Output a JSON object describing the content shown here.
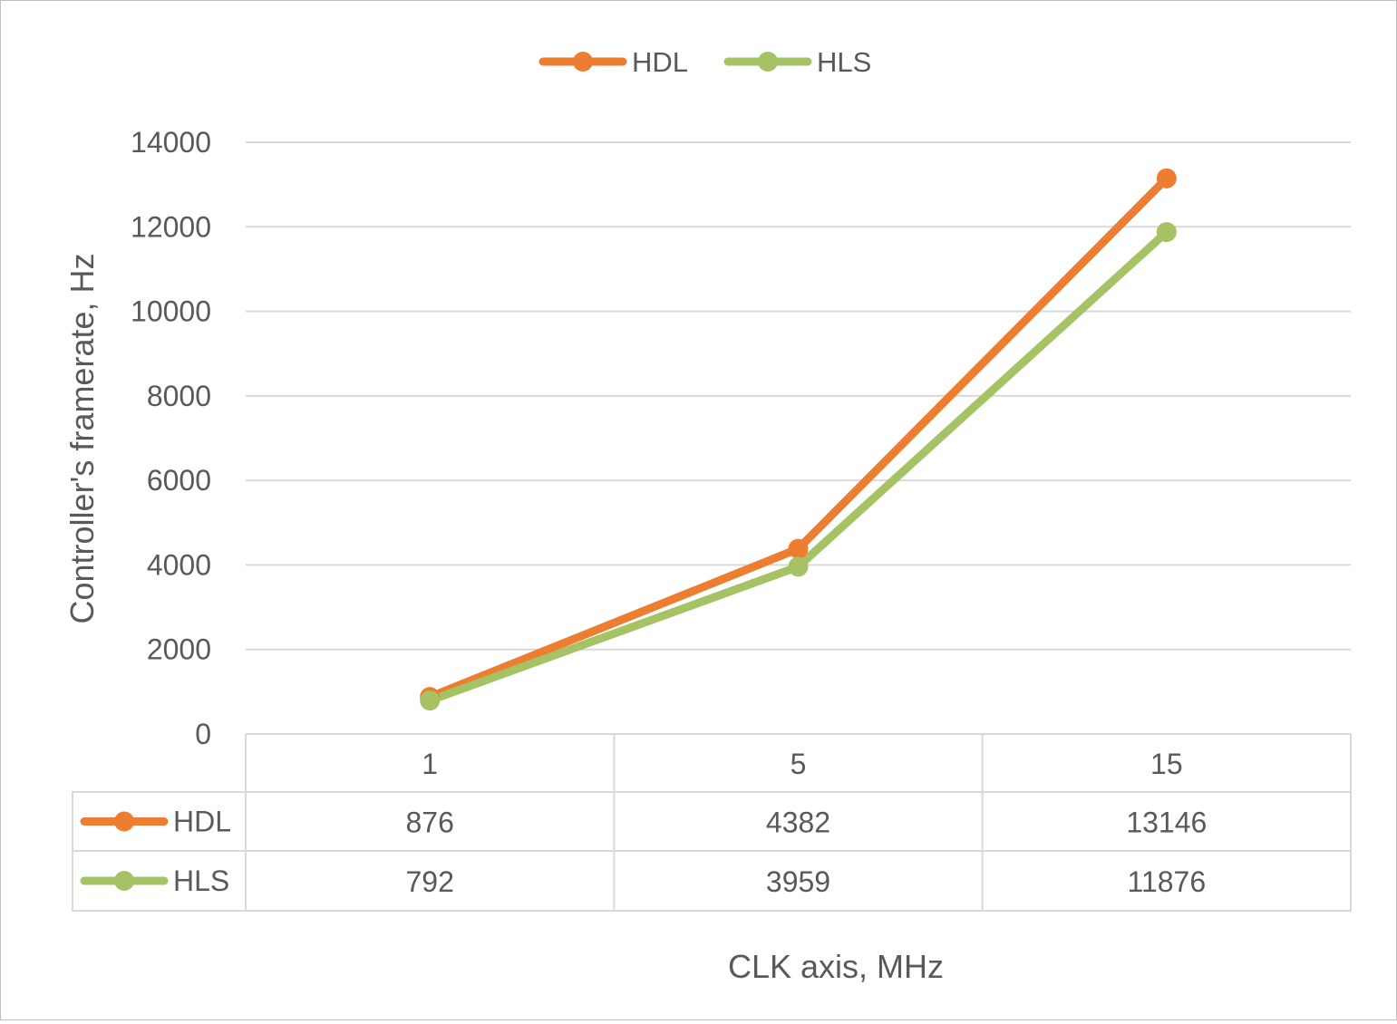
{
  "chart_data": {
    "type": "line",
    "title": "",
    "xlabel": "CLK axis, MHz",
    "ylabel": "Controller's framerate, Hz",
    "categories": [
      "1",
      "5",
      "15"
    ],
    "ylim": [
      0,
      14000
    ],
    "y_ticks": [
      0,
      2000,
      4000,
      6000,
      8000,
      10000,
      12000,
      14000
    ],
    "grid": true,
    "legend_position": "top",
    "data_table": true,
    "series": [
      {
        "name": "HDL",
        "values": [
          876,
          4382,
          13146
        ],
        "color": "#ed7d31"
      },
      {
        "name": "HLS",
        "values": [
          792,
          3959,
          11876
        ],
        "color": "#a5c265"
      }
    ]
  }
}
